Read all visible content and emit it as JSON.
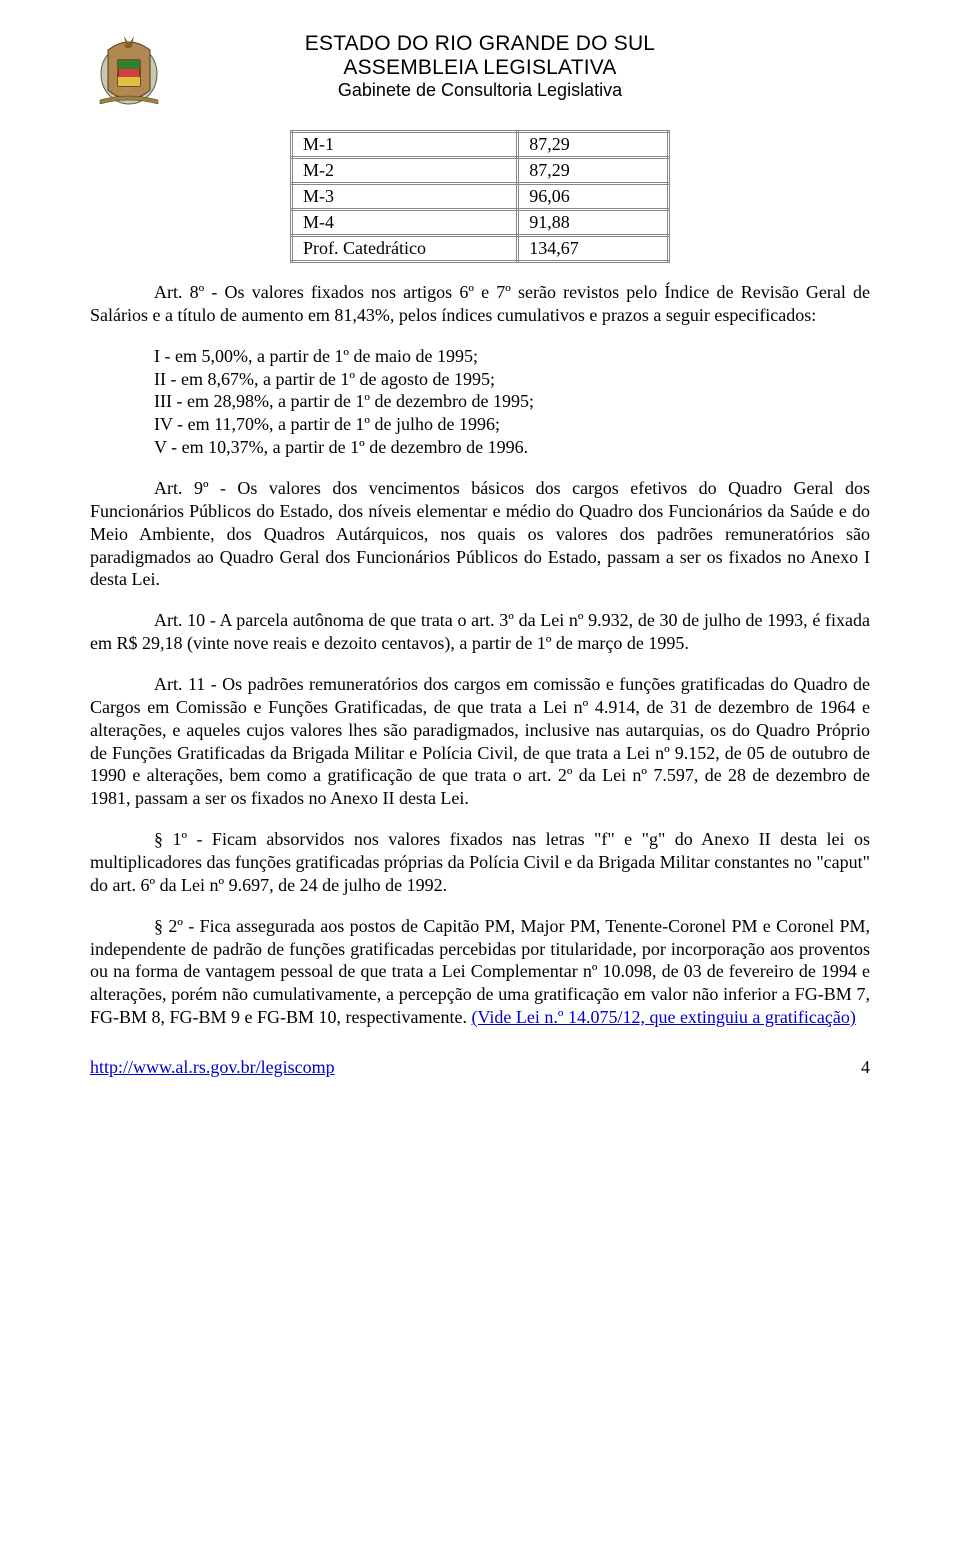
{
  "header": {
    "line1": "ESTADO DO RIO GRANDE DO SUL",
    "line2": "ASSEMBLEIA LEGISLATIVA",
    "line3": "Gabinete de Consultoria Legislativa"
  },
  "table_rows": [
    {
      "label": "M-1",
      "value": "87,29"
    },
    {
      "label": "M-2",
      "value": "87,29"
    },
    {
      "label": "M-3",
      "value": "96,06"
    },
    {
      "label": "M-4",
      "value": "91,88"
    },
    {
      "label": "Prof. Catedrático",
      "value": "134,67"
    }
  ],
  "art8_intro": "Art. 8º - Os valores fixados nos artigos 6º e 7º serão revistos pelo Índice de Revisão Geral de Salários e a título de aumento em 81,43%, pelos índices cumulativos e prazos a seguir especificados:",
  "art8_items": [
    "I - em 5,00%, a partir de 1º de maio de 1995;",
    "II - em 8,67%, a partir de 1º de agosto de 1995;",
    "III - em 28,98%, a partir de 1º de dezembro de 1995;",
    "IV - em 11,70%, a partir de 1º de julho de 1996;",
    "V - em 10,37%, a partir de 1º de dezembro de 1996."
  ],
  "art9": "Art. 9º - Os valores dos vencimentos básicos dos cargos efetivos do Quadro Geral dos Funcionários Públicos do Estado, dos níveis elementar e médio do Quadro dos Funcionários da Saúde e do Meio Ambiente, dos Quadros Autárquicos, nos quais os valores dos padrões remuneratórios são paradigmados ao Quadro Geral dos Funcionários Públicos do Estado, passam a ser os fixados no Anexo I desta Lei.",
  "art10": "Art. 10 - A parcela autônoma de que trata o art. 3º da Lei nº 9.932, de 30 de julho de 1993, é fixada em R$ 29,18 (vinte nove reais e dezoito centavos), a partir de 1º de março de 1995.",
  "art11": "Art. 11 - Os padrões remuneratórios dos cargos em comissão e funções gratificadas do Quadro de Cargos em Comissão e Funções Gratificadas, de que trata a Lei nº 4.914, de 31 de dezembro de 1964 e alterações, e aqueles cujos valores lhes são paradigmados, inclusive nas autarquias, os do Quadro Próprio de Funções Gratificadas da Brigada Militar e Polícia Civil, de que trata a Lei nº 9.152, de 05 de outubro de 1990 e alterações, bem como a gratificação de que trata o art. 2º da Lei nº 7.597, de 28 de dezembro de 1981, passam a ser os fixados no Anexo II desta Lei.",
  "par1": "§ 1º - Ficam absorvidos nos valores fixados nas letras \"f\" e \"g\" do Anexo II desta lei os multiplicadores das funções gratificadas próprias da Polícia Civil e da Brigada Militar constantes no \"caput\" do art. 6º da Lei nº 9.697, de 24 de julho de 1992.",
  "par2_text": "§ 2º - Fica assegurada aos postos de Capitão PM, Major PM, Tenente-Coronel PM e Coronel PM, independente de padrão de funções gratificadas percebidas por titularidade, por incorporação aos proventos ou na forma de vantagem pessoal de que trata a Lei Complementar nº 10.098, de 03 de fevereiro de 1994 e alterações, porém não cumulativamente, a percepção de uma gratificação em valor não inferior a FG-BM 7, FG-BM 8, FG-BM 9 e FG-BM 10, respectivamente. ",
  "par2_link": "(Vide Lei n.º 14.075/12, que extinguiu a gratificação)",
  "footer": {
    "url": "http://www.al.rs.gov.br/legiscomp",
    "page": "4"
  },
  "colors": {
    "link": "#0000cc",
    "text": "#000000",
    "background": "#ffffff"
  }
}
